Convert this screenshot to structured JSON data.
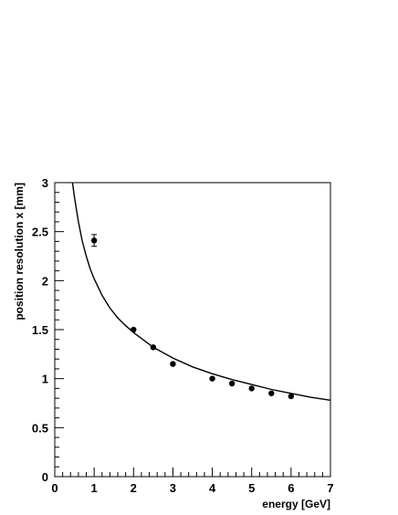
{
  "chart_data": {
    "type": "scatter",
    "xlabel": "energy [GeV]",
    "ylabel": "position resolution x [mm]",
    "xlim": [
      0,
      7
    ],
    "ylim": [
      0,
      3
    ],
    "x_ticks": [
      "0",
      "1",
      "2",
      "3",
      "4",
      "5",
      "6",
      "7"
    ],
    "y_ticks": [
      "0",
      "0.5",
      "1",
      "1.5",
      "2",
      "2.5",
      "3"
    ],
    "grid": false,
    "series": [
      {
        "kind": "points",
        "x": [
          1.0,
          2.0,
          2.5,
          3.0,
          4.0,
          4.5,
          5.0,
          5.5,
          6.0
        ],
        "y": [
          2.41,
          1.5,
          1.32,
          1.15,
          1.0,
          0.95,
          0.9,
          0.85,
          0.82
        ],
        "y_err": [
          0.06,
          0.02,
          0.02,
          0.02,
          0.02,
          0.02,
          0.02,
          0.02,
          0.02
        ]
      },
      {
        "kind": "fit-curve",
        "x": [
          0.45,
          0.5,
          0.6,
          0.7,
          0.8,
          0.9,
          1.0,
          1.2,
          1.4,
          1.6,
          1.8,
          2.0,
          2.5,
          3.0,
          3.5,
          4.0,
          4.5,
          5.0,
          5.5,
          6.0,
          6.5,
          7.0
        ],
        "y": [
          3.0,
          2.85,
          2.6,
          2.4,
          2.25,
          2.12,
          2.02,
          1.85,
          1.72,
          1.62,
          1.54,
          1.47,
          1.32,
          1.21,
          1.12,
          1.05,
          0.99,
          0.94,
          0.89,
          0.85,
          0.81,
          0.78
        ]
      }
    ]
  }
}
